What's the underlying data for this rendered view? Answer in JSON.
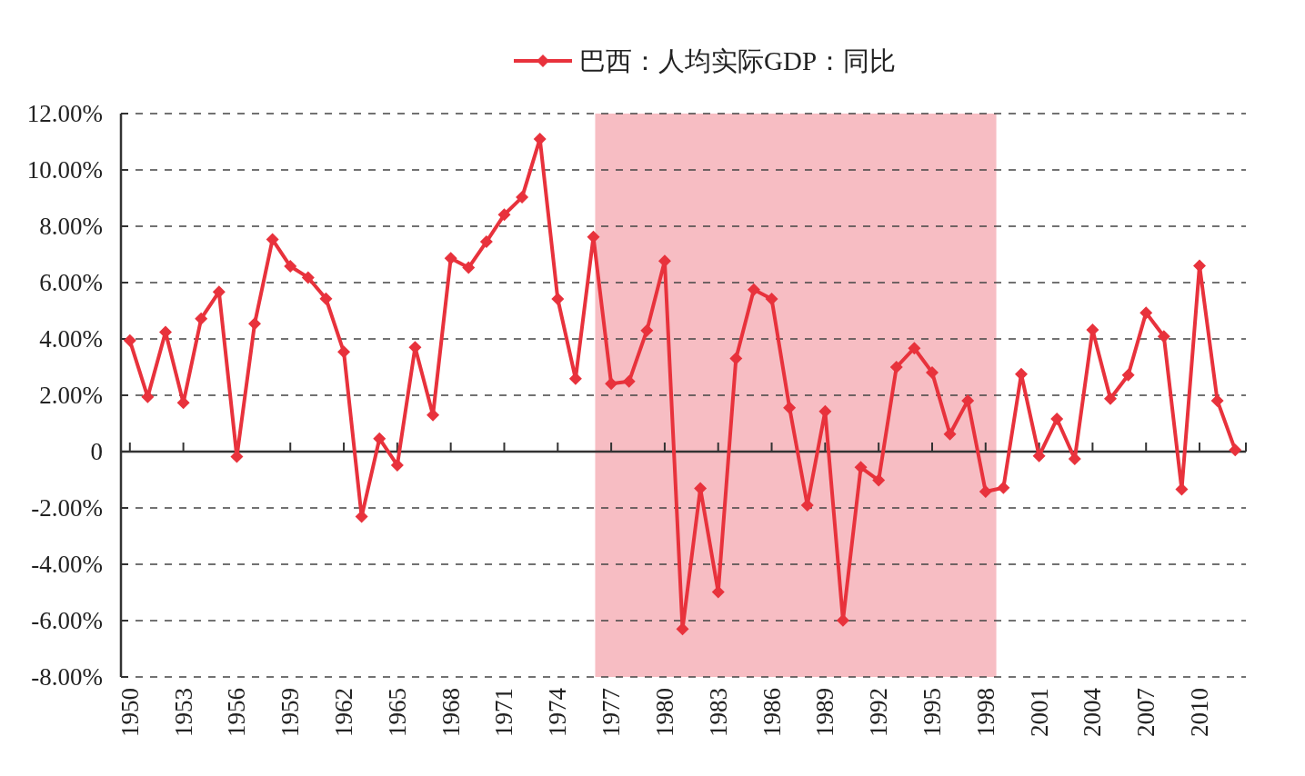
{
  "chart_data": {
    "type": "line",
    "x": [
      1950,
      1951,
      1952,
      1953,
      1954,
      1955,
      1956,
      1957,
      1958,
      1959,
      1960,
      1961,
      1962,
      1963,
      1964,
      1965,
      1966,
      1967,
      1968,
      1969,
      1970,
      1971,
      1972,
      1973,
      1974,
      1975,
      1976,
      1977,
      1978,
      1979,
      1980,
      1981,
      1982,
      1983,
      1984,
      1985,
      1986,
      1987,
      1988,
      1989,
      1990,
      1991,
      1992,
      1993,
      1994,
      1995,
      1996,
      1997,
      1998,
      1999,
      2000,
      2001,
      2002,
      2003,
      2004,
      2005,
      2006,
      2007,
      2008,
      2009,
      2010,
      2011,
      2012
    ],
    "series": [
      {
        "name": "巴西：人均实际GDP：同比",
        "color": "#e8323c",
        "values": [
          3.94,
          1.94,
          4.24,
          1.73,
          4.72,
          5.67,
          -0.18,
          4.54,
          7.53,
          6.58,
          6.18,
          5.43,
          3.54,
          -2.31,
          0.46,
          -0.48,
          3.7,
          1.3,
          6.86,
          6.53,
          7.45,
          8.41,
          9.03,
          11.1,
          5.42,
          2.59,
          7.62,
          2.41,
          2.49,
          4.3,
          6.77,
          -6.3,
          -1.31,
          -4.98,
          3.31,
          5.75,
          5.42,
          1.56,
          -1.9,
          1.43,
          -5.99,
          -0.56,
          -1.02,
          3.0,
          3.67,
          2.81,
          0.62,
          1.81,
          -1.42,
          -1.28,
          2.75,
          -0.15,
          1.16,
          -0.26,
          4.32,
          1.88,
          2.72,
          4.93,
          4.09,
          -1.34,
          6.6,
          1.81,
          0.06
        ]
      }
    ],
    "xlim": [
      1949.5,
      2012.6
    ],
    "xticks": [
      1950,
      1953,
      1956,
      1959,
      1962,
      1965,
      1968,
      1971,
      1974,
      1977,
      1980,
      1983,
      1986,
      1989,
      1992,
      1995,
      1998,
      2001,
      2004,
      2007,
      2010
    ],
    "ylim": [
      -8,
      12
    ],
    "yticks": [
      {
        "value": -8,
        "label": "-8.00%"
      },
      {
        "value": -6,
        "label": "-6.00%"
      },
      {
        "value": -4,
        "label": "-4.00%"
      },
      {
        "value": -2,
        "label": "-2.00%"
      },
      0,
      {
        "value": 2,
        "label": "2.00%"
      },
      {
        "value": 4,
        "label": "4.00%"
      },
      {
        "value": 6,
        "label": "6.00%"
      },
      {
        "value": 8,
        "label": "8.00%"
      },
      {
        "value": 10,
        "label": "10.00%"
      },
      {
        "value": 12,
        "label": "12.00%"
      }
    ],
    "bands": [
      {
        "axis": "x",
        "from": 1976.1,
        "to": 1998.6,
        "color": "#f7b9c0"
      }
    ],
    "grid": "y",
    "legend": "top",
    "marker": "diamond",
    "line_style": "solid"
  }
}
